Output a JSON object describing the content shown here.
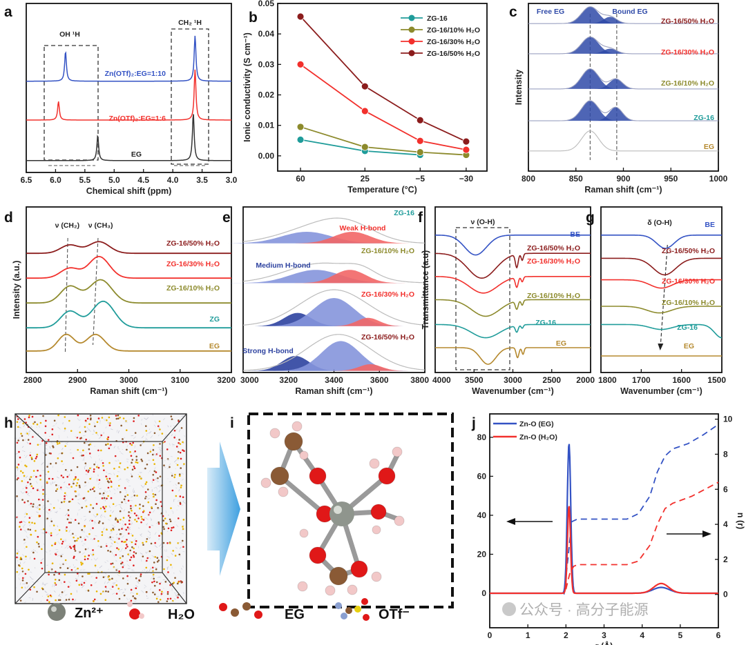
{
  "figure": {
    "panel_letters": [
      "a",
      "b",
      "c",
      "d",
      "e",
      "f",
      "g",
      "h",
      "i",
      "j"
    ],
    "legend_species": [
      "Zn²⁺",
      "H₂O",
      "EG",
      "OTf⁻"
    ],
    "watermark": "公众号 · 高分子能源"
  },
  "colors": {
    "teal": "#1f9c9a",
    "olive": "#8c8a2c",
    "red": "#f2302c",
    "darkred": "#8b1c1c",
    "blue": "#3352c4",
    "gold": "#b5892e",
    "black": "#333333",
    "grey": "#c4c4c4"
  },
  "chart_data": [
    {
      "id": "a",
      "type": "line",
      "xlabel": "Chemical shift (ppm)",
      "ylabel": "",
      "xlim": [
        6.5,
        3.0
      ],
      "ylim": [
        0,
        100
      ],
      "xticks": [
        "6.5",
        "6.0",
        "5.5",
        "5.0",
        "4.5",
        "4.0",
        "3.5",
        "3.0"
      ],
      "series": [
        {
          "name": "Zn(OTf)₂:EG=1:10",
          "color": "#3352c4",
          "baseline": 54,
          "shape": "lorentz",
          "peaks": [
            [
              5.83,
              17.5,
              0.018
            ],
            [
              3.62,
              27,
              0.018
            ]
          ]
        },
        {
          "name": "Zn(OTf)₂:EG=1:6",
          "color": "#f2302c",
          "baseline": 31,
          "shape": "lorentz",
          "peaks": [
            [
              5.95,
              11,
              0.018
            ],
            [
              3.62,
              30,
              0.018
            ]
          ]
        },
        {
          "name": "EG",
          "color": "#333333",
          "baseline": 7,
          "shape": "lorentz",
          "peaks": [
            [
              5.28,
              15,
              0.018
            ],
            [
              3.65,
              28,
              0.018
            ]
          ]
        }
      ],
      "annotations": [
        "OH ¹H",
        "CH₂ ¹H"
      ]
    },
    {
      "id": "b",
      "type": "line",
      "xlabel": "Temperature (°C)",
      "ylabel": "Ionic conductivity (S cm⁻¹)",
      "x": [
        60,
        25,
        -5,
        -30
      ],
      "xlim": [
        72.4,
        -41.3
      ],
      "ylim": [
        -0.005,
        0.05
      ],
      "xticks": [
        "60",
        "25",
        "−5",
        "−30"
      ],
      "yticks": [
        "0.00",
        "0.01",
        "0.02",
        "0.03",
        "0.04",
        "0.05"
      ],
      "legend_position": "top-right",
      "series": [
        {
          "name": "ZG-16",
          "color": "#1f9c9a",
          "values": [
            0.0053,
            0.0016,
            0.0003,
            null
          ]
        },
        {
          "name": "ZG-16/10% H₂O",
          "color": "#8c8a2c",
          "values": [
            0.0095,
            0.0029,
            0.0012,
            0.0003
          ]
        },
        {
          "name": "ZG-16/30% H₂O",
          "color": "#f2302c",
          "values": [
            0.03,
            0.0147,
            0.0049,
            0.002
          ]
        },
        {
          "name": "ZG-16/50% H₂O",
          "color": "#8b1c1c",
          "values": [
            0.0457,
            0.0228,
            0.0117,
            0.0047
          ]
        }
      ]
    },
    {
      "id": "c",
      "type": "area",
      "xlabel": "Raman shift (cm⁻¹)",
      "ylabel": "Intensity",
      "xlim": [
        800,
        1000
      ],
      "ylim": [
        0,
        100
      ],
      "xticks": [
        "800",
        "850",
        "900",
        "950",
        "1000"
      ],
      "series": [
        {
          "name": "ZG-16/50% H₂O",
          "color": "#8b1c1c",
          "baseline": 88,
          "fill": "#2f4aa8",
          "peaks": [
            [
              865,
              10,
              9
            ],
            [
              886,
              4,
              7
            ]
          ]
        },
        {
          "name": "ZG-16/30% H₂O",
          "color": "#f2302c",
          "baseline": 70,
          "fill": "#2f4aa8",
          "peaks": [
            [
              865,
              10,
              9
            ],
            [
              886,
              3,
              7
            ]
          ]
        },
        {
          "name": "ZG-16/10% H₂O",
          "color": "#8c8a2c",
          "baseline": 49,
          "fill": "#2f4aa8",
          "peaks": [
            [
              865,
              12,
              9
            ],
            [
              892,
              6,
              7
            ]
          ]
        },
        {
          "name": "ZG-16",
          "color": "#1f9c9a",
          "baseline": 30,
          "fill": "#2f4aa8",
          "peaks": [
            [
              865,
              12,
              9
            ],
            [
              892,
              8,
              7
            ]
          ]
        },
        {
          "name": "EG",
          "color": "#b5892e",
          "baseline": 12,
          "fill": null,
          "peaks": [
            [
              865,
              12,
              9
            ]
          ]
        }
      ],
      "annotations": [
        "Free EG",
        "Bound EG"
      ]
    },
    {
      "id": "d",
      "type": "line",
      "xlabel": "Raman shift (cm⁻¹)",
      "ylabel": "Intensity (a.u.)",
      "xlim": [
        2800,
        3200
      ],
      "ylim": [
        0,
        100
      ],
      "xticks": [
        "2800",
        "2900",
        "3000",
        "3100",
        "3200"
      ],
      "series": [
        {
          "name": "ZG-16/50% H₂O",
          "color": "#8b1c1c",
          "baseline": 72,
          "peaks": [
            [
              2885,
              5,
              18
            ],
            [
              2942,
              7,
              20
            ]
          ]
        },
        {
          "name": "ZG-16/30% H₂O",
          "color": "#f2302c",
          "baseline": 57,
          "peaks": [
            [
              2885,
              6,
              18
            ],
            [
              2942,
              13,
              20
            ]
          ]
        },
        {
          "name": "ZG-16/10% H₂O",
          "color": "#8c8a2c",
          "baseline": 42,
          "peaks": [
            [
              2885,
              10,
              18
            ],
            [
              2945,
              14,
              22
            ]
          ]
        },
        {
          "name": "ZG",
          "color": "#1f9c9a",
          "baseline": 27,
          "peaks": [
            [
              2885,
              10,
              18
            ],
            [
              2950,
              16,
              22
            ]
          ]
        },
        {
          "name": "EG",
          "color": "#b5892e",
          "baseline": 13,
          "peaks": [
            [
              2878,
              10,
              16
            ],
            [
              2935,
              10,
              18
            ]
          ]
        }
      ],
      "annotations": [
        "ν (CH₂)",
        "ν (CH₃)"
      ]
    },
    {
      "id": "e",
      "type": "area",
      "xlabel": "Raman shift (cm⁻¹)",
      "ylabel": "",
      "xlim": [
        3000,
        3800
      ],
      "ylim": [
        0,
        100
      ],
      "xticks": [
        "3000",
        "3200",
        "3400",
        "3600",
        "3800"
      ],
      "series": [
        {
          "name": "ZG-16",
          "color": "#1f9c9a",
          "baseline": 78,
          "envelope": [
            [
              3300,
              8,
              150
            ],
            [
              3460,
              10,
              120
            ]
          ],
          "components": [
            [
              3280,
              7,
              110,
              "#8595dc"
            ],
            [
              3480,
              7,
              80,
              "#f26666"
            ]
          ]
        },
        {
          "name": "ZG-16/10% H₂O",
          "color": "#8c8a2c",
          "baseline": 54,
          "envelope": [
            [
              3350,
              12,
              160
            ],
            [
              3520,
              4,
              60
            ]
          ],
          "components": [
            [
              3320,
              8,
              110,
              "#8595dc"
            ],
            [
              3470,
              8,
              70,
              "#f26666"
            ]
          ]
        },
        {
          "name": "ZG-16/30% H₂O",
          "color": "#f2302c",
          "baseline": 28,
          "envelope": [
            [
              3400,
              22,
              150
            ]
          ],
          "components": [
            [
              3240,
              8,
              60,
              "#2e43a0"
            ],
            [
              3400,
              17,
              90,
              "#8595dc"
            ],
            [
              3550,
              5,
              50,
              "#f26666"
            ]
          ]
        },
        {
          "name": "ZG-16/50% H₂O",
          "color": "#8b1c1c",
          "baseline": 1,
          "envelope": [
            [
              3420,
              22,
              140
            ]
          ],
          "components": [
            [
              3230,
              9,
              60,
              "#2e43a0"
            ],
            [
              3430,
              18,
              85,
              "#8595dc"
            ],
            [
              3560,
              4,
              50,
              "#f26666"
            ]
          ]
        }
      ],
      "annotations": [
        "Weak H-bond",
        "Medium H-bond",
        "Strong H-bond"
      ]
    },
    {
      "id": "f",
      "type": "line",
      "xlabel": "Wavenumber (cm⁻¹)",
      "ylabel": "Transmittance (a.u)",
      "xlim": [
        4000,
        2000
      ],
      "ylim": [
        0,
        100
      ],
      "xticks": [
        "4000",
        "3500",
        "3000",
        "2500",
        "2000"
      ],
      "series": [
        {
          "name": "BE",
          "color": "#3352c4",
          "baseline": 83,
          "peaks": [
            [
              3480,
              -12,
              140
            ]
          ]
        },
        {
          "name": "ZG-16/50% H₂O",
          "color": "#8b1c1c",
          "baseline": 72,
          "peaks": [
            [
              3400,
              -15,
              180
            ],
            [
              2950,
              -8,
              18
            ],
            [
              2880,
              -4,
              14
            ]
          ]
        },
        {
          "name": "ZG-16/30% H₂O",
          "color": "#f2302c",
          "baseline": 58,
          "peaks": [
            [
              3380,
              -10,
              180
            ],
            [
              2950,
              -6,
              18
            ],
            [
              2880,
              -3,
              14
            ]
          ]
        },
        {
          "name": "ZG-16/10% H₂O",
          "color": "#8c8a2c",
          "baseline": 44,
          "peaks": [
            [
              3350,
              -10,
              180
            ],
            [
              2950,
              -5,
              18
            ],
            [
              2880,
              -3,
              14
            ]
          ]
        },
        {
          "name": "ZG-16",
          "color": "#1f9c9a",
          "baseline": 29,
          "peaks": [
            [
              3350,
              -8,
              180
            ],
            [
              2950,
              -4,
              18
            ],
            [
              2880,
              -2,
              14
            ]
          ]
        },
        {
          "name": "EG",
          "color": "#b5892e",
          "baseline": 15,
          "peaks": [
            [
              3320,
              -10,
              100
            ],
            [
              2940,
              -6,
              18
            ],
            [
              2870,
              -4,
              14
            ]
          ]
        }
      ],
      "annotations": [
        "ν (O-H)"
      ]
    },
    {
      "id": "g",
      "type": "line",
      "xlabel": "Wavenumber (cm⁻¹)",
      "ylabel": "",
      "xlim": [
        1800,
        1500
      ],
      "ylim": [
        0,
        100
      ],
      "xticks": [
        "1800",
        "1700",
        "1600",
        "1500"
      ],
      "series": [
        {
          "name": "BE",
          "color": "#3352c4",
          "baseline": 83,
          "peaks": [
            [
              1640,
              -8,
              22
            ]
          ]
        },
        {
          "name": "ZG-16/50% H₂O",
          "color": "#8b1c1c",
          "baseline": 69,
          "peaks": [
            [
              1642,
              -10,
              28
            ]
          ]
        },
        {
          "name": "ZG-16/30% H₂O",
          "color": "#f2302c",
          "baseline": 56,
          "peaks": [
            [
              1650,
              -5,
              28
            ]
          ]
        },
        {
          "name": "ZG-16/10% H₂O",
          "color": "#8c8a2c",
          "baseline": 40,
          "peaks": [
            [
              1655,
              -4,
              30
            ]
          ]
        },
        {
          "name": "ZG-16",
          "color": "#1f9c9a",
          "baseline": 29,
          "peaks": [
            [
              1650,
              -3,
              28
            ],
            [
              1500,
              -8,
              18
            ]
          ]
        },
        {
          "name": "EG",
          "color": "#b5892e",
          "baseline": 10,
          "peaks": []
        }
      ],
      "annotations": [
        "δ (O-H)"
      ]
    },
    {
      "id": "j",
      "type": "line",
      "xlabel": "r (Å)",
      "ylabel": "n (r)",
      "xlim": [
        0,
        6
      ],
      "ylim": [
        -17.7,
        92
      ],
      "ylim_right": [
        -1.9,
        10.3
      ],
      "xticks": [
        "0",
        "1",
        "2",
        "3",
        "4",
        "5",
        "6"
      ],
      "yticks": [
        "0",
        "20",
        "40",
        "60",
        "80"
      ],
      "yticks_right": [
        "0",
        "2",
        "4",
        "6",
        "8",
        "10"
      ],
      "legend_position": "top-left",
      "series": [
        {
          "name": "Zn-O (EG)",
          "color": "#3352c4",
          "peaks": [
            [
              2.08,
              77,
              0.045
            ],
            [
              4.5,
              3,
              0.22
            ]
          ],
          "n_r": [
            [
              1.95,
              0
            ],
            [
              2.05,
              2
            ],
            [
              2.15,
              4.15
            ],
            [
              2.3,
              4.3
            ],
            [
              3.6,
              4.3
            ],
            [
              3.9,
              4.6
            ],
            [
              4.2,
              5.6
            ],
            [
              4.4,
              7
            ],
            [
              4.6,
              7.9
            ],
            [
              4.8,
              8.3
            ],
            [
              5.2,
              8.6
            ],
            [
              5.6,
              9.1
            ],
            [
              6,
              9.7
            ]
          ]
        },
        {
          "name": "Zn-O (H₂O)",
          "color": "#f2302c",
          "peaks": [
            [
              2.08,
              45,
              0.04
            ],
            [
              4.5,
              5,
              0.2
            ]
          ],
          "n_r": [
            [
              2.0,
              0.3
            ],
            [
              2.1,
              1.2
            ],
            [
              2.2,
              1.6
            ],
            [
              2.3,
              1.7
            ],
            [
              3.6,
              1.7
            ],
            [
              3.9,
              1.9
            ],
            [
              4.2,
              2.8
            ],
            [
              4.4,
              4
            ],
            [
              4.6,
              4.9
            ],
            [
              4.8,
              5.2
            ],
            [
              5.3,
              5.6
            ],
            [
              6,
              6.4
            ]
          ]
        }
      ]
    }
  ]
}
